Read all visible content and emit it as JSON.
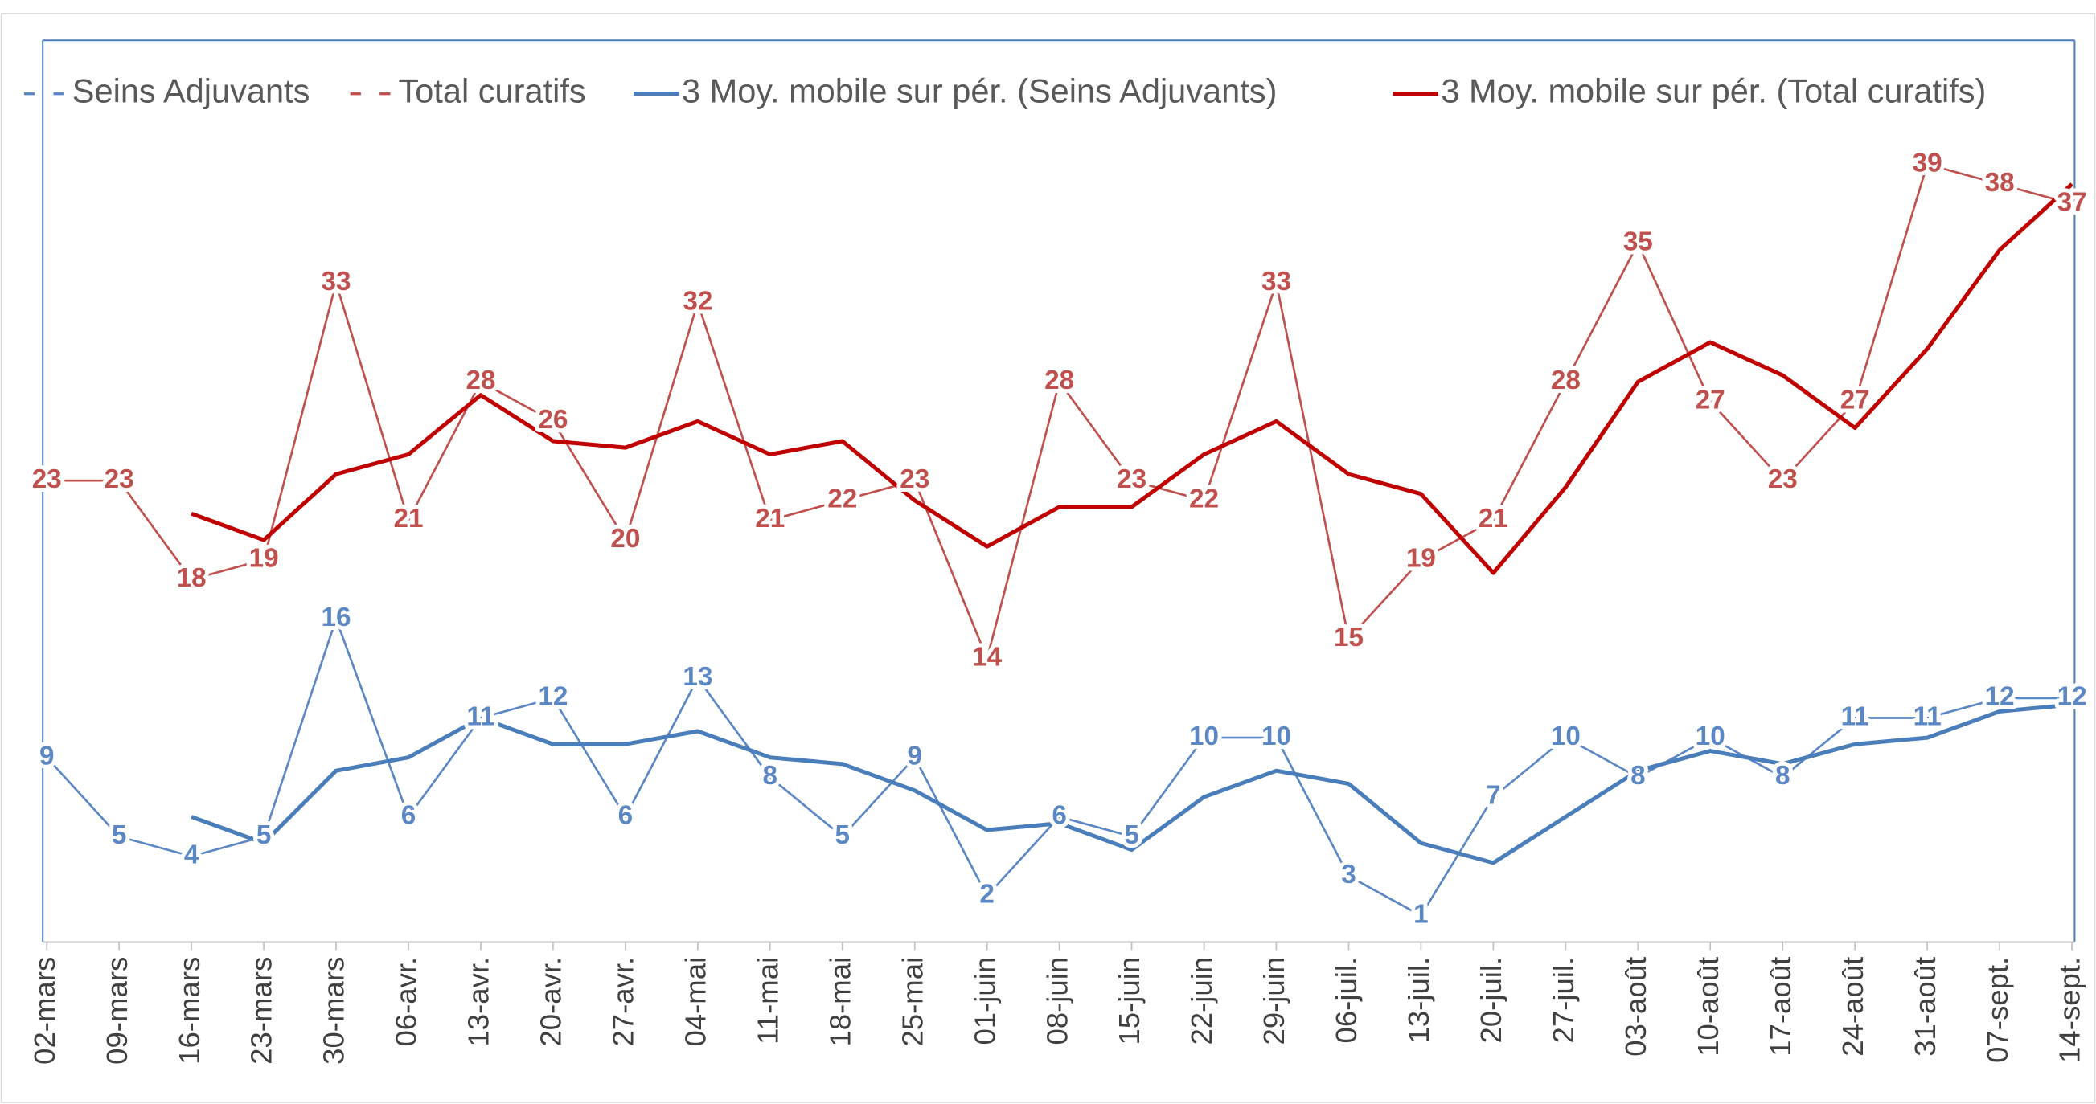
{
  "chart_data": {
    "type": "line",
    "categories": [
      "02-mars",
      "09-mars",
      "16-mars",
      "23-mars",
      "30-mars",
      "06-avr.",
      "13-avr.",
      "20-avr.",
      "27-avr.",
      "04-mai",
      "11-mai",
      "18-mai",
      "25-mai",
      "01-juin",
      "08-juin",
      "15-juin",
      "22-juin",
      "29-juin",
      "06-juil.",
      "13-juil.",
      "20-juil.",
      "27-juil.",
      "03-août",
      "10-août",
      "17-août",
      "24-août",
      "31-août",
      "07-sept.",
      "14-sept."
    ],
    "series": [
      {
        "name": "Seins Adjuvants",
        "color": "#5b87c5",
        "labels": true,
        "values": [
          9,
          5,
          4,
          5,
          16,
          6,
          11,
          12,
          6,
          13,
          8,
          5,
          9,
          2,
          6,
          5,
          10,
          10,
          3,
          1,
          7,
          10,
          8,
          10,
          8,
          11,
          11,
          12,
          12
        ]
      },
      {
        "name": "Total curatifs",
        "color": "#c0504d",
        "labels": true,
        "values": [
          23,
          23,
          18,
          19,
          33,
          21,
          28,
          26,
          20,
          32,
          21,
          22,
          23,
          14,
          28,
          23,
          22,
          33,
          15,
          19,
          21,
          28,
          35,
          27,
          23,
          27,
          39,
          38,
          37
        ]
      },
      {
        "name": "3 Moy. mobile sur pér. (Seins Adjuvants)",
        "color": "#4a7ebb",
        "labels": false,
        "values": [
          null,
          null,
          6,
          4.67,
          8.33,
          9,
          11,
          9.67,
          9.67,
          10.33,
          9,
          8.67,
          7.33,
          5.33,
          5.67,
          4.33,
          7,
          8.33,
          7.67,
          4.67,
          3.67,
          6,
          8.33,
          9.33,
          8.67,
          9.67,
          10,
          11.33,
          11.67
        ]
      },
      {
        "name": "3 Moy. mobile sur pér. (Total curatifs)",
        "color": "#c00000",
        "labels": false,
        "values": [
          null,
          null,
          21.33,
          20,
          23.33,
          24.33,
          27.33,
          25,
          24.67,
          26,
          24.33,
          25,
          22,
          19.67,
          21.67,
          21.67,
          24.33,
          26,
          23.33,
          22.33,
          18.33,
          22.67,
          28,
          30,
          28.33,
          25.67,
          29.67,
          34.67,
          38
        ]
      }
    ],
    "ylim": [
      0,
      45
    ],
    "legend": "top"
  }
}
